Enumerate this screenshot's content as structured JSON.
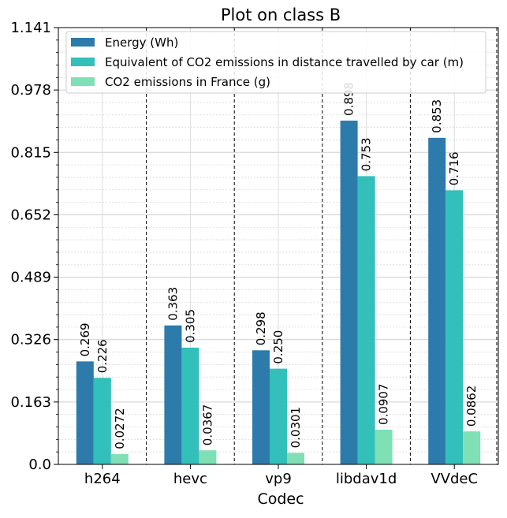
{
  "chart_data": {
    "type": "bar",
    "title": "Plot on class B",
    "xlabel": "Codec",
    "ylabel": "",
    "categories": [
      "h264",
      "hevc",
      "vp9",
      "libdav1d",
      "VVdeC"
    ],
    "series": [
      {
        "name": "Energy (Wh)",
        "color": "#2c7bab",
        "values": [
          0.269,
          0.363,
          0.298,
          0.898,
          0.853
        ],
        "labels": [
          "0.269",
          "0.363",
          "0.298",
          "0.898",
          "0.853"
        ]
      },
      {
        "name": "Equivalent of CO2 emissions in distance travelled by car (m)",
        "color": "#33bfba",
        "values": [
          0.226,
          0.305,
          0.25,
          0.753,
          0.716
        ],
        "labels": [
          "0.226",
          "0.305",
          "0.250",
          "0.753",
          "0.716"
        ]
      },
      {
        "name": "CO2 emissions in France (g)",
        "color": "#7fdfb5",
        "values": [
          0.0272,
          0.0367,
          0.0301,
          0.0907,
          0.0862
        ],
        "labels": [
          "0.0272",
          "0.0367",
          "0.0301",
          "0.0907",
          "0.0862"
        ]
      }
    ],
    "ylim": [
      0,
      1.141
    ],
    "yticks": [
      0.0,
      0.163,
      0.326,
      0.489,
      0.652,
      0.815,
      0.978,
      1.141
    ],
    "ytick_labels": [
      "0.0",
      "0.163",
      "0.326",
      "0.489",
      "0.652",
      "0.815",
      "0.978",
      "1.141"
    ],
    "grid": true,
    "legend_position": "top-left",
    "group_separators": "dashed"
  }
}
